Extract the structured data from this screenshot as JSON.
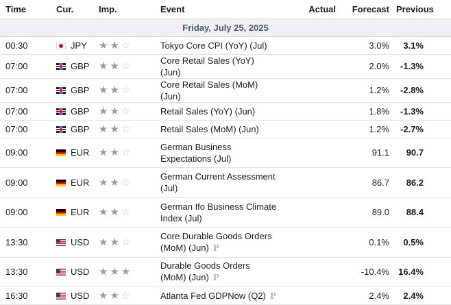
{
  "header": {
    "time": "Time",
    "currency": "Cur.",
    "importance": "Imp.",
    "event": "Event",
    "actual": "Actual",
    "forecast": "Forecast",
    "previous": "Previous"
  },
  "date_label": "Friday, July 25, 2025",
  "colors": {
    "star_on": "#9a9a9a",
    "star_off": "#c7c7c7",
    "date_bg": "#eef0f4",
    "date_text": "#4a5a74"
  },
  "events": [
    {
      "time": "00:30",
      "flag": "jp-flag-icon",
      "currency": "JPY",
      "stars": 2,
      "event": "Tokyo Core CPI (YoY) (Jul)",
      "prelim": "",
      "actual": "",
      "forecast": "3.0%",
      "previous": "3.1%"
    },
    {
      "time": "07:00",
      "flag": "gb-flag-icon",
      "currency": "GBP",
      "stars": 2,
      "event": "Core Retail Sales (YoY) (Jun)",
      "prelim": "",
      "actual": "",
      "forecast": "2.0%",
      "previous": "-1.3%"
    },
    {
      "time": "07:00",
      "flag": "gb-flag-icon",
      "currency": "GBP",
      "stars": 2,
      "event": "Core Retail Sales (MoM) (Jun)",
      "prelim": "",
      "actual": "",
      "forecast": "1.2%",
      "previous": "-2.8%"
    },
    {
      "time": "07:00",
      "flag": "gb-flag-icon",
      "currency": "GBP",
      "stars": 2,
      "event": "Retail Sales (YoY) (Jun)",
      "prelim": "",
      "actual": "",
      "forecast": "1.8%",
      "previous": "-1.3%"
    },
    {
      "time": "07:00",
      "flag": "gb-flag-icon",
      "currency": "GBP",
      "stars": 2,
      "event": "Retail Sales (MoM) (Jun)",
      "prelim": "",
      "actual": "",
      "forecast": "1.2%",
      "previous": "-2.7%"
    },
    {
      "time": "09:00",
      "flag": "de-flag-icon",
      "currency": "EUR",
      "stars": 2,
      "event": "German Business Expectations (Jul)",
      "prelim": "",
      "actual": "",
      "forecast": "91.1",
      "previous": "90.7"
    },
    {
      "time": "09:00",
      "flag": "de-flag-icon",
      "currency": "EUR",
      "stars": 2,
      "event": "German Current Assessment (Jul)",
      "prelim": "",
      "actual": "",
      "forecast": "86.7",
      "previous": "86.2"
    },
    {
      "time": "09:00",
      "flag": "de-flag-icon",
      "currency": "EUR",
      "stars": 2,
      "event": "German Ifo Business Climate Index (Jul)",
      "prelim": "",
      "actual": "",
      "forecast": "89.0",
      "previous": "88.4"
    },
    {
      "time": "13:30",
      "flag": "us-flag-icon",
      "currency": "USD",
      "stars": 2,
      "event": "Core Durable Goods Orders (MoM) (Jun)",
      "prelim": "P",
      "actual": "",
      "forecast": "0.1%",
      "previous": "0.5%"
    },
    {
      "time": "13:30",
      "flag": "us-flag-icon",
      "currency": "USD",
      "stars": 3,
      "event": "Durable Goods Orders (MoM) (Jun)",
      "prelim": "P",
      "actual": "",
      "forecast": "-10.4%",
      "previous": "16.4%"
    },
    {
      "time": "16:30",
      "flag": "us-flag-icon",
      "currency": "USD",
      "stars": 2,
      "event": "Atlanta Fed GDPNow (Q2)",
      "prelim": "P",
      "actual": "",
      "forecast": "2.4%",
      "previous": "2.4%"
    }
  ]
}
